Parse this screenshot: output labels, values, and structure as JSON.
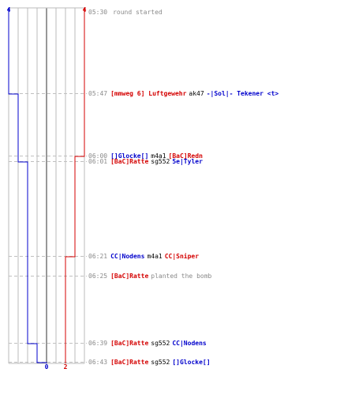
{
  "colors": {
    "team_red": "#d40000",
    "team_blue": "#0000cc",
    "grid": "#bbbbbb",
    "center_line": "#777777",
    "dash": "#c0c0c0",
    "time": "#8a8a8a",
    "weapon": "#000000"
  },
  "axis": {
    "blue_start": "4",
    "red_start": "4",
    "blue_end": "0",
    "red_end": "2"
  },
  "events": [
    {
      "time": "05:30",
      "message": "round started"
    },
    {
      "time": "05:47",
      "killer": "[mmweg 6] Luftgewehr",
      "killer_team": "red",
      "weapon": "ak47",
      "victim": "-|Sol|- Tekener <t>",
      "victim_team": "blue"
    },
    {
      "time": "06:00",
      "killer": "[]Glocke[]",
      "killer_team": "blue",
      "weapon": "m4a1",
      "victim": "[BaC]Redn",
      "victim_team": "red"
    },
    {
      "time": "06:01",
      "killer": "[BaC]Ratte",
      "killer_team": "red",
      "weapon": "sg552",
      "victim": "5e|Tyler",
      "victim_team": "blue"
    },
    {
      "time": "06:21",
      "killer": "CC|Nodens",
      "killer_team": "blue",
      "weapon": "m4a1",
      "victim": "CC|Sniper",
      "victim_team": "red"
    },
    {
      "time": "06:25",
      "killer": "[BaC]Ratte",
      "killer_team": "red",
      "message": "planted the bomb"
    },
    {
      "time": "06:39",
      "killer": "[BaC]Ratte",
      "killer_team": "red",
      "weapon": "sg552",
      "victim": "CC|Nodens",
      "victim_team": "blue"
    },
    {
      "time": "06:43",
      "killer": "[BaC]Ratte",
      "killer_team": "red",
      "weapon": "sg552",
      "victim": "[]Glocke[]",
      "victim_team": "blue"
    }
  ]
}
